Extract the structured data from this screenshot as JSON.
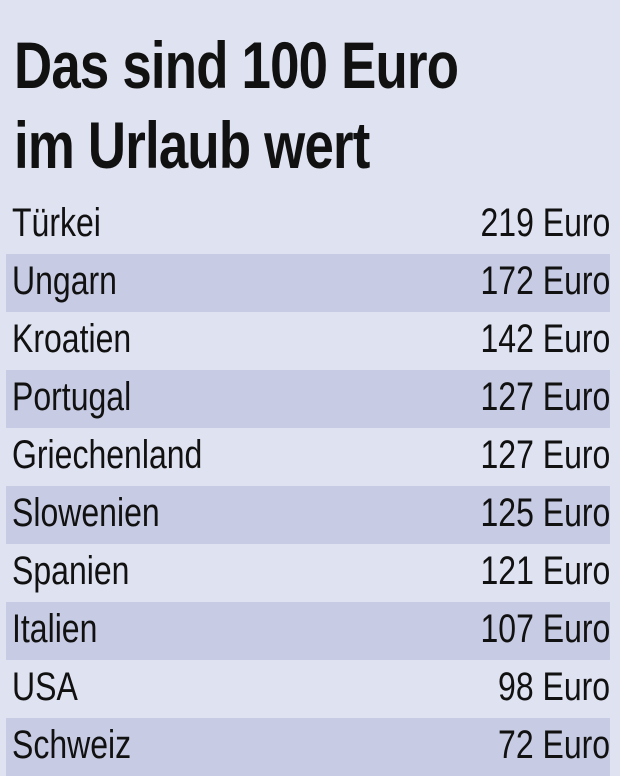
{
  "header": {
    "title": [
      "Das sind 100 Euro",
      "im Urlaub wert"
    ]
  },
  "table": {
    "rows": [
      [
        "Türkei",
        "219 Euro"
      ],
      [
        "Ungarn",
        "172 Euro"
      ],
      [
        "Kroatien",
        "142 Euro"
      ],
      [
        "Portugal",
        "127 Euro"
      ],
      [
        "Griechenland",
        "127 Euro"
      ],
      [
        "Slowenien",
        "125 Euro"
      ],
      [
        "Spanien",
        "121 Euro"
      ],
      [
        "Italien",
        "107 Euro"
      ],
      [
        "USA",
        "98 Euro"
      ],
      [
        "Schweiz",
        "72 Euro"
      ]
    ]
  }
}
